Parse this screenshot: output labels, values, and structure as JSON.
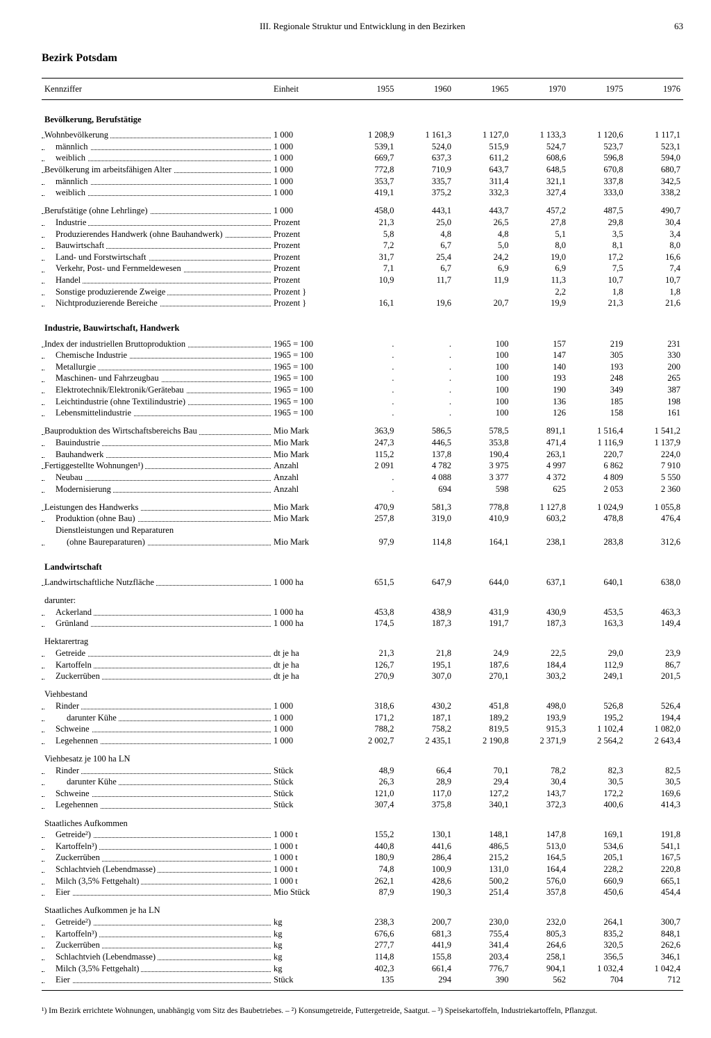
{
  "header": {
    "title": "III. Regionale Struktur und Entwicklung in den Bezirken",
    "page": "63"
  },
  "region_title": "Bezirk Potsdam",
  "columns": {
    "label": "Kennziffer",
    "unit": "Einheit",
    "years": [
      "1955",
      "1960",
      "1965",
      "1970",
      "1975",
      "1976"
    ]
  },
  "sections": [
    {
      "title": "Bevölkerung, Berufstätige",
      "groups": [
        [
          {
            "label": "Wohnbevölkerung",
            "unit": "1 000",
            "vals": [
              "1 208,9",
              "1 161,3",
              "1 127,0",
              "1 133,3",
              "1 120,6",
              "1 117,1"
            ],
            "indent": 0
          },
          {
            "label": "männlich",
            "unit": "1 000",
            "vals": [
              "539,1",
              "524,0",
              "515,9",
              "524,7",
              "523,7",
              "523,1"
            ],
            "indent": 1
          },
          {
            "label": "weiblich",
            "unit": "1 000",
            "vals": [
              "669,7",
              "637,3",
              "611,2",
              "608,6",
              "596,8",
              "594,0"
            ],
            "indent": 1
          },
          {
            "label": "Bevölkerung im arbeitsfähigen Alter",
            "unit": "1 000",
            "vals": [
              "772,8",
              "710,9",
              "643,7",
              "648,5",
              "670,8",
              "680,7"
            ],
            "indent": 0
          },
          {
            "label": "männlich",
            "unit": "1 000",
            "vals": [
              "353,7",
              "335,7",
              "311,4",
              "321,1",
              "337,8",
              "342,5"
            ],
            "indent": 1
          },
          {
            "label": "weiblich",
            "unit": "1 000",
            "vals": [
              "419,1",
              "375,2",
              "332,3",
              "327,4",
              "333,0",
              "338,2"
            ],
            "indent": 1
          }
        ],
        [
          {
            "label": "Berufstätige (ohne Lehrlinge)",
            "unit": "1 000",
            "vals": [
              "458,0",
              "443,1",
              "443,7",
              "457,2",
              "487,5",
              "490,7"
            ],
            "indent": 0
          },
          {
            "label": "Industrie",
            "unit": "Prozent",
            "vals": [
              "21,3",
              "25,0",
              "26,5",
              "27,8",
              "29,8",
              "30,4"
            ],
            "indent": 1
          },
          {
            "label": "Produzierendes Handwerk (ohne Bauhandwerk)",
            "unit": "Prozent",
            "vals": [
              "5,8",
              "4,8",
              "4,8",
              "5,1",
              "3,5",
              "3,4"
            ],
            "indent": 1
          },
          {
            "label": "Bauwirtschaft",
            "unit": "Prozent",
            "vals": [
              "7,2",
              "6,7",
              "5,0",
              "8,0",
              "8,1",
              "8,0"
            ],
            "indent": 1
          },
          {
            "label": "Land- und Forstwirtschaft",
            "unit": "Prozent",
            "vals": [
              "31,7",
              "25,4",
              "24,2",
              "19,0",
              "17,2",
              "16,6"
            ],
            "indent": 1
          },
          {
            "label": "Verkehr, Post- und Fernmeldewesen",
            "unit": "Prozent",
            "vals": [
              "7,1",
              "6,7",
              "6,9",
              "6,9",
              "7,5",
              "7,4"
            ],
            "indent": 1
          },
          {
            "label": "Handel",
            "unit": "Prozent",
            "vals": [
              "10,9",
              "11,7",
              "11,9",
              "11,3",
              "10,7",
              "10,7"
            ],
            "indent": 1
          },
          {
            "label": "Sonstige produzierende Zweige",
            "unit": "Prozent  }",
            "vals": [
              "",
              "",
              "",
              "2,2",
              "1,8",
              "1,8"
            ],
            "indent": 1,
            "merge_below": true
          },
          {
            "label": "Nichtproduzierende Bereiche",
            "unit": "Prozent  }",
            "vals": [
              "16,1",
              "19,6",
              "20,7",
              "19,9",
              "21,3",
              "21,6"
            ],
            "indent": 1,
            "merge_above": true
          }
        ]
      ]
    },
    {
      "title": "Industrie, Bauwirtschaft, Handwerk",
      "groups": [
        [
          {
            "label": "Index der industriellen Bruttoproduktion",
            "unit": "1965 = 100",
            "vals": [
              ".",
              ".",
              "100",
              "157",
              "219",
              "231"
            ],
            "indent": 0
          },
          {
            "label": "Chemische Industrie",
            "unit": "1965 = 100",
            "vals": [
              ".",
              ".",
              "100",
              "147",
              "305",
              "330"
            ],
            "indent": 1
          },
          {
            "label": "Metallurgie",
            "unit": "1965 = 100",
            "vals": [
              ".",
              ".",
              "100",
              "140",
              "193",
              "200"
            ],
            "indent": 1
          },
          {
            "label": "Maschinen- und Fahrzeugbau",
            "unit": "1965 = 100",
            "vals": [
              ".",
              ".",
              "100",
              "193",
              "248",
              "265"
            ],
            "indent": 1
          },
          {
            "label": "Elektrotechnik/Elektronik/Gerätebau",
            "unit": "1965 = 100",
            "vals": [
              ".",
              ".",
              "100",
              "190",
              "349",
              "387"
            ],
            "indent": 1
          },
          {
            "label": "Leichtindustrie (ohne Textilindustrie)",
            "unit": "1965 = 100",
            "vals": [
              ".",
              ".",
              "100",
              "136",
              "185",
              "198"
            ],
            "indent": 1
          },
          {
            "label": "Lebensmittelindustrie",
            "unit": "1965 = 100",
            "vals": [
              ".",
              ".",
              "100",
              "126",
              "158",
              "161"
            ],
            "indent": 1
          }
        ],
        [
          {
            "label": "Bauproduktion des Wirtschaftsbereichs Bau",
            "unit": "Mio Mark",
            "vals": [
              "363,9",
              "586,5",
              "578,5",
              "891,1",
              "1 516,4",
              "1 541,2"
            ],
            "indent": 0
          },
          {
            "label": "Bauindustrie",
            "unit": "Mio Mark",
            "vals": [
              "247,3",
              "446,5",
              "353,8",
              "471,4",
              "1 116,9",
              "1 137,9"
            ],
            "indent": 1
          },
          {
            "label": "Bauhandwerk",
            "unit": "Mio Mark",
            "vals": [
              "115,2",
              "137,8",
              "190,4",
              "263,1",
              "220,7",
              "224,0"
            ],
            "indent": 1
          },
          {
            "label": "Fertiggestellte Wohnungen¹)",
            "unit": "Anzahl",
            "vals": [
              "2 091",
              "4 782",
              "3 975",
              "4 997",
              "6 862",
              "7 910"
            ],
            "indent": 0
          },
          {
            "label": "Neubau",
            "unit": "Anzahl",
            "vals": [
              ".",
              "4 088",
              "3 377",
              "4 372",
              "4 809",
              "5 550"
            ],
            "indent": 1
          },
          {
            "label": "Modernisierung",
            "unit": "Anzahl",
            "vals": [
              ".",
              "694",
              "598",
              "625",
              "2 053",
              "2 360"
            ],
            "indent": 1
          }
        ],
        [
          {
            "label": "Leistungen des Handwerks",
            "unit": "Mio Mark",
            "vals": [
              "470,9",
              "581,3",
              "778,8",
              "1 127,8",
              "1 024,9",
              "1 055,8"
            ],
            "indent": 0
          },
          {
            "label": "Produktion (ohne Bau)",
            "unit": "Mio Mark",
            "vals": [
              "257,8",
              "319,0",
              "410,9",
              "603,2",
              "478,8",
              "476,4"
            ],
            "indent": 1
          },
          {
            "label": "Dienstleistungen und Reparaturen",
            "unit": "",
            "vals": [
              "",
              "",
              "",
              "",
              "",
              ""
            ],
            "indent": 1,
            "nodots": true
          },
          {
            "label": "(ohne Baureparaturen)",
            "unit": "Mio Mark",
            "vals": [
              "97,9",
              "114,8",
              "164,1",
              "238,1",
              "283,8",
              "312,6"
            ],
            "indent": 2
          }
        ]
      ]
    },
    {
      "title": "Landwirtschaft",
      "groups": [
        [
          {
            "label": "Landwirtschaftliche Nutzfläche",
            "unit": "1 000 ha",
            "vals": [
              "651,5",
              "647,9",
              "644,0",
              "637,1",
              "640,1",
              "638,0"
            ],
            "indent": 0
          }
        ],
        [
          {
            "label": "darunter:",
            "unit": "",
            "vals": [
              "",
              "",
              "",
              "",
              "",
              ""
            ],
            "indent": 0,
            "nodots": true
          },
          {
            "label": "Ackerland",
            "unit": "1 000 ha",
            "vals": [
              "453,8",
              "438,9",
              "431,9",
              "430,9",
              "453,5",
              "463,3"
            ],
            "indent": 1
          },
          {
            "label": "Grünland",
            "unit": "1 000 ha",
            "vals": [
              "174,5",
              "187,3",
              "191,7",
              "187,3",
              "163,3",
              "149,4"
            ],
            "indent": 1
          }
        ],
        [
          {
            "label": "Hektarertrag",
            "unit": "",
            "vals": [
              "",
              "",
              "",
              "",
              "",
              ""
            ],
            "indent": 0,
            "nodots": true
          },
          {
            "label": "Getreide",
            "unit": "dt je ha",
            "vals": [
              "21,3",
              "21,8",
              "24,9",
              "22,5",
              "29,0",
              "23,9"
            ],
            "indent": 1
          },
          {
            "label": "Kartoffeln",
            "unit": "dt je ha",
            "vals": [
              "126,7",
              "195,1",
              "187,6",
              "184,4",
              "112,9",
              "86,7"
            ],
            "indent": 1
          },
          {
            "label": "Zuckerrüben",
            "unit": "dt je ha",
            "vals": [
              "270,9",
              "307,0",
              "270,1",
              "303,2",
              "249,1",
              "201,5"
            ],
            "indent": 1
          }
        ],
        [
          {
            "label": "Viehbestand",
            "unit": "",
            "vals": [
              "",
              "",
              "",
              "",
              "",
              ""
            ],
            "indent": 0,
            "nodots": true
          },
          {
            "label": "Rinder",
            "unit": "1 000",
            "vals": [
              "318,6",
              "430,2",
              "451,8",
              "498,0",
              "526,8",
              "526,4"
            ],
            "indent": 1
          },
          {
            "label": "darunter Kühe",
            "unit": "1 000",
            "vals": [
              "171,2",
              "187,1",
              "189,2",
              "193,9",
              "195,2",
              "194,4"
            ],
            "indent": 2
          },
          {
            "label": "Schweine",
            "unit": "1 000",
            "vals": [
              "788,2",
              "758,2",
              "819,5",
              "915,3",
              "1 102,4",
              "1 082,0"
            ],
            "indent": 1
          },
          {
            "label": "Legehennen",
            "unit": "1 000",
            "vals": [
              "2 002,7",
              "2 435,1",
              "2 190,8",
              "2 371,9",
              "2 564,2",
              "2 643,4"
            ],
            "indent": 1
          }
        ],
        [
          {
            "label": "Viehbesatz je 100 ha LN",
            "unit": "",
            "vals": [
              "",
              "",
              "",
              "",
              "",
              ""
            ],
            "indent": 0,
            "nodots": true
          },
          {
            "label": "Rinder",
            "unit": "Stück",
            "vals": [
              "48,9",
              "66,4",
              "70,1",
              "78,2",
              "82,3",
              "82,5"
            ],
            "indent": 1
          },
          {
            "label": "darunter Kühe",
            "unit": "Stück",
            "vals": [
              "26,3",
              "28,9",
              "29,4",
              "30,4",
              "30,5",
              "30,5"
            ],
            "indent": 2
          },
          {
            "label": "Schweine",
            "unit": "Stück",
            "vals": [
              "121,0",
              "117,0",
              "127,2",
              "143,7",
              "172,2",
              "169,6"
            ],
            "indent": 1
          },
          {
            "label": "Legehennen",
            "unit": "Stück",
            "vals": [
              "307,4",
              "375,8",
              "340,1",
              "372,3",
              "400,6",
              "414,3"
            ],
            "indent": 1
          }
        ],
        [
          {
            "label": "Staatliches Aufkommen",
            "unit": "",
            "vals": [
              "",
              "",
              "",
              "",
              "",
              ""
            ],
            "indent": 0,
            "nodots": true
          },
          {
            "label": "Getreide²)",
            "unit": "1 000 t",
            "vals": [
              "155,2",
              "130,1",
              "148,1",
              "147,8",
              "169,1",
              "191,8"
            ],
            "indent": 1
          },
          {
            "label": "Kartoffeln³)",
            "unit": "1 000 t",
            "vals": [
              "440,8",
              "441,6",
              "486,5",
              "513,0",
              "534,6",
              "541,1"
            ],
            "indent": 1
          },
          {
            "label": "Zuckerrüben",
            "unit": "1 000 t",
            "vals": [
              "180,9",
              "286,4",
              "215,2",
              "164,5",
              "205,1",
              "167,5"
            ],
            "indent": 1
          },
          {
            "label": "Schlachtvieh (Lebendmasse)",
            "unit": "1 000 t",
            "vals": [
              "74,8",
              "100,9",
              "131,0",
              "164,4",
              "228,2",
              "220,8"
            ],
            "indent": 1
          },
          {
            "label": "Milch (3,5% Fettgehalt)",
            "unit": "1 000 t",
            "vals": [
              "262,1",
              "428,6",
              "500,2",
              "576,0",
              "660,9",
              "665,1"
            ],
            "indent": 1
          },
          {
            "label": "Eier",
            "unit": "Mio Stück",
            "vals": [
              "87,9",
              "190,3",
              "251,4",
              "357,8",
              "450,6",
              "454,4"
            ],
            "indent": 1
          }
        ],
        [
          {
            "label": "Staatliches Aufkommen je ha LN",
            "unit": "",
            "vals": [
              "",
              "",
              "",
              "",
              "",
              ""
            ],
            "indent": 0,
            "nodots": true
          },
          {
            "label": "Getreide²)",
            "unit": "kg",
            "vals": [
              "238,3",
              "200,7",
              "230,0",
              "232,0",
              "264,1",
              "300,7"
            ],
            "indent": 1
          },
          {
            "label": "Kartoffeln³)",
            "unit": "kg",
            "vals": [
              "676,6",
              "681,3",
              "755,4",
              "805,3",
              "835,2",
              "848,1"
            ],
            "indent": 1
          },
          {
            "label": "Zuckerrüben",
            "unit": "kg",
            "vals": [
              "277,7",
              "441,9",
              "341,4",
              "264,6",
              "320,5",
              "262,6"
            ],
            "indent": 1
          },
          {
            "label": "Schlachtvieh (Lebendmasse)",
            "unit": "kg",
            "vals": [
              "114,8",
              "155,8",
              "203,4",
              "258,1",
              "356,5",
              "346,1"
            ],
            "indent": 1
          },
          {
            "label": "Milch (3,5% Fettgehalt)",
            "unit": "kg",
            "vals": [
              "402,3",
              "661,4",
              "776,7",
              "904,1",
              "1 032,4",
              "1 042,4"
            ],
            "indent": 1
          },
          {
            "label": "Eier",
            "unit": "Stück",
            "vals": [
              "135",
              "294",
              "390",
              "562",
              "704",
              "712"
            ],
            "indent": 1
          }
        ]
      ]
    }
  ],
  "footnotes": "¹) Im Bezirk errichtete Wohnungen, unabhängig vom Sitz des Baubetriebes. – ²) Konsumgetreide, Futtergetreide, Saatgut. – ³) Speisekartoffeln, Industriekartoffeln, Pflanzgut."
}
